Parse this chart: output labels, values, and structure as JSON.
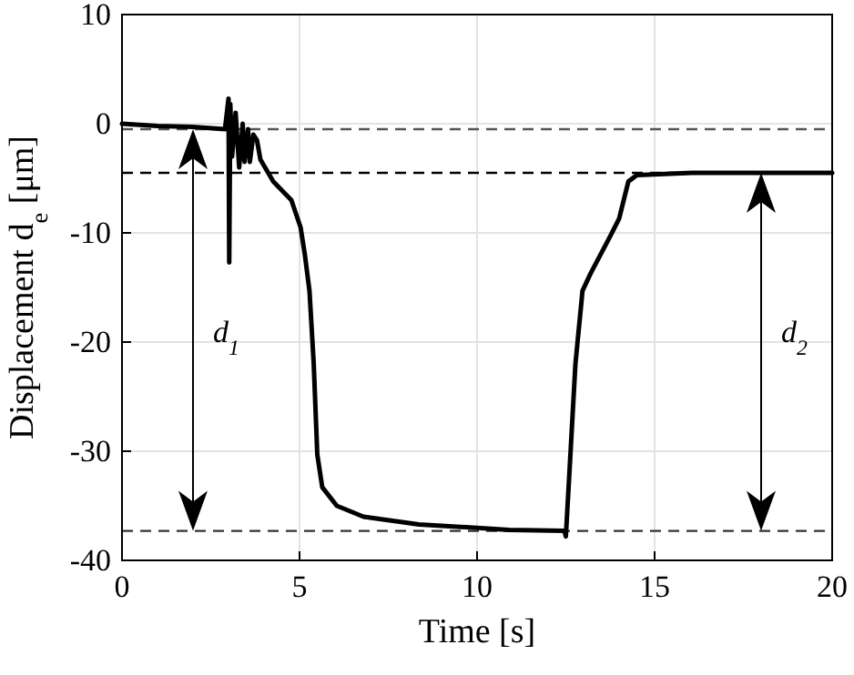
{
  "chart_data": {
    "type": "line",
    "xlabel": "Time [s]",
    "ylabel": "Displacement d$_{e}$ [μm]",
    "xlim": [
      0,
      20
    ],
    "ylim": [
      -40,
      10
    ],
    "xticks": [
      0,
      5,
      10,
      15,
      20
    ],
    "yticks": [
      10,
      0,
      -10,
      -20,
      -30,
      -40
    ],
    "grid": true,
    "series": [
      {
        "color": "#000000",
        "x": [
          0,
          1,
          2,
          2.9,
          3.0,
          3.02,
          3.05,
          3.1,
          3.2,
          3.3,
          3.4,
          3.45,
          3.55,
          3.6,
          3.7,
          3.8,
          3.9,
          4.26,
          4.77,
          5.03,
          5.15,
          5.28,
          5.4,
          5.5,
          5.64,
          6.05,
          6.8,
          8.36,
          10.9,
          12.46,
          12.5,
          12.6,
          12.77,
          12.97,
          13.2,
          13.75,
          14,
          14.26,
          14.5,
          16.05,
          20
        ],
        "values": [
          0,
          -0.2,
          -0.3,
          -0.5,
          2.3,
          -12.7,
          1.8,
          -3,
          1,
          -4,
          0,
          -3.5,
          -0.5,
          -3.5,
          -1,
          -1.5,
          -3.3,
          -5.3,
          -7,
          -9.5,
          -12,
          -15.3,
          -22,
          -30.3,
          -33.3,
          -35,
          -36,
          -36.7,
          -37.2,
          -37.3,
          -37.8,
          -32,
          -22,
          -15.3,
          -13.7,
          -10.3,
          -8.7,
          -5.3,
          -4.7,
          -4.5,
          -4.5
        ]
      }
    ],
    "ref_lines": [
      {
        "axis": "y",
        "value": -0.5,
        "color": "#555555",
        "line_style": "dashed"
      },
      {
        "axis": "y",
        "value": -4.5,
        "color": "#000000",
        "line_style": "dashed"
      },
      {
        "axis": "y",
        "value": -37.3,
        "color": "#333333",
        "line_style": "dashed"
      }
    ],
    "annotations": [
      "d$_{1}$",
      "d$_{2}$"
    ]
  }
}
